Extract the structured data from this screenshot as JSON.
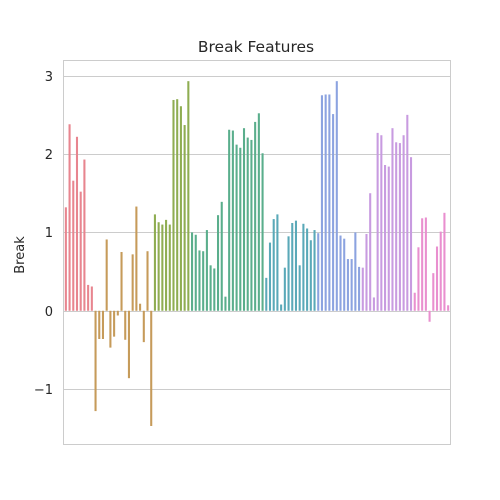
{
  "chart_data": {
    "type": "bar",
    "title": "Break Features",
    "xlabel": "",
    "ylabel": "Break",
    "ylim": [
      -1.7,
      3.2
    ],
    "yticks": [
      {
        "value": -1,
        "label": "−1"
      },
      {
        "value": 0,
        "label": "0"
      },
      {
        "value": 1,
        "label": "1"
      },
      {
        "value": 2,
        "label": "2"
      },
      {
        "value": 3,
        "label": "3"
      }
    ],
    "grid": true,
    "x_tick_labels": "none",
    "values": [
      1.32,
      2.38,
      1.66,
      2.22,
      1.52,
      1.93,
      0.33,
      0.31,
      -1.28,
      -0.36,
      -0.36,
      0.91,
      -0.47,
      -0.33,
      -0.06,
      0.75,
      -0.37,
      -0.86,
      0.72,
      1.33,
      0.09,
      -0.4,
      0.76,
      -1.47,
      1.23,
      1.13,
      1.1,
      1.16,
      1.1,
      2.69,
      2.7,
      2.61,
      2.37,
      2.93,
      1.0,
      0.97,
      0.77,
      0.76,
      1.03,
      0.58,
      0.54,
      1.22,
      1.39,
      0.18,
      2.31,
      2.3,
      2.12,
      2.08,
      2.33,
      2.21,
      2.18,
      2.41,
      2.52,
      2.01,
      0.42,
      0.87,
      1.17,
      1.23,
      0.08,
      0.55,
      0.95,
      1.12,
      1.15,
      0.58,
      1.11,
      1.05,
      0.9,
      1.03,
      0.99,
      2.75,
      2.76,
      2.76,
      2.51,
      2.93,
      0.96,
      0.92,
      0.66,
      0.66,
      1.0,
      0.56,
      0.55,
      0.98,
      1.5,
      0.17,
      2.27,
      2.24,
      1.86,
      1.84,
      2.33,
      2.15,
      2.14,
      2.24,
      2.5,
      1.96,
      0.23,
      0.81,
      1.18,
      1.19,
      -0.14,
      0.48,
      0.82,
      1.01,
      1.25,
      0.07
    ],
    "colors": [
      "#e8858f",
      "#c69b5a",
      "#8fad52",
      "#5aae8c",
      "#5aa9b8",
      "#8ca3e0",
      "#c89be0",
      "#e98fcf"
    ],
    "color_counts": [
      8,
      16,
      10,
      20,
      14,
      12,
      14,
      10
    ]
  }
}
